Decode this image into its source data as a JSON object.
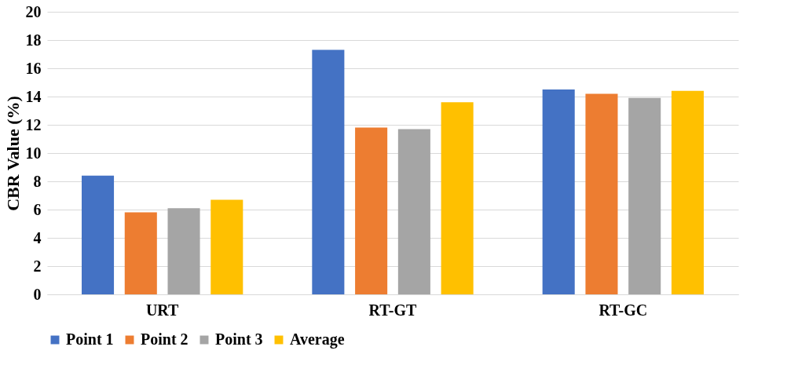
{
  "chart_data": {
    "type": "bar",
    "ylabel": "CBR Value (%)",
    "categories": [
      "URT",
      "RT-GT",
      "RT-GC"
    ],
    "series": [
      {
        "name": "Point 1",
        "color": "#4472c4",
        "values": [
          8.4,
          17.3,
          14.5
        ]
      },
      {
        "name": "Point 2",
        "color": "#ed7d31",
        "values": [
          5.8,
          11.8,
          14.2
        ]
      },
      {
        "name": "Point 3",
        "color": "#a5a5a5",
        "values": [
          6.1,
          11.7,
          13.9
        ]
      },
      {
        "name": "Average",
        "color": "#ffc000",
        "values": [
          6.7,
          13.6,
          14.4
        ]
      }
    ],
    "ylim": [
      0,
      20
    ],
    "yticks": [
      0,
      2,
      4,
      6,
      8,
      10,
      12,
      14,
      16,
      18,
      20
    ],
    "grid": "y",
    "legend": "bottom"
  }
}
